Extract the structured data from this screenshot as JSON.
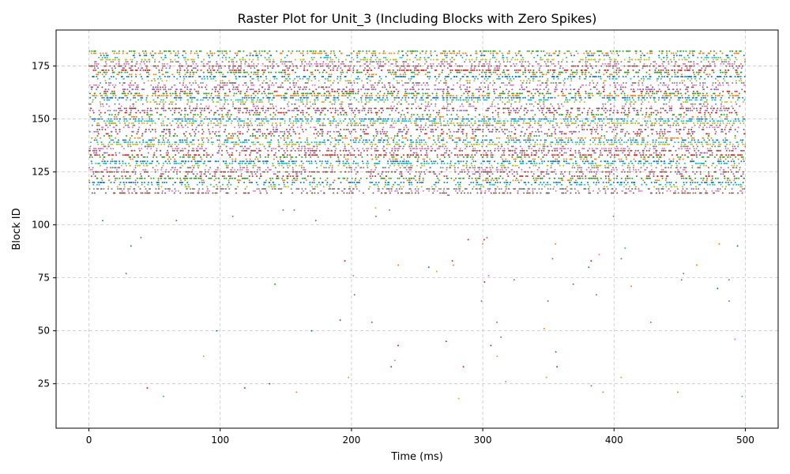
{
  "chart_data": {
    "type": "scatter",
    "title": "Raster Plot for Unit_3 (Including Blocks with Zero Spikes)",
    "xlabel": "Time (ms)",
    "ylabel": "Block ID",
    "xlim": [
      -25,
      525
    ],
    "ylim": [
      4,
      192
    ],
    "xticks": [
      0,
      100,
      200,
      300,
      400,
      500
    ],
    "yticks": [
      25,
      50,
      75,
      100,
      125,
      150,
      175
    ],
    "grid": true,
    "colors": [
      "#1f77b4",
      "#ff7f0e",
      "#2ca02c",
      "#d62728",
      "#9467bd",
      "#8c564b",
      "#e377c2",
      "#7f7f7f",
      "#bcbd22",
      "#17becf"
    ],
    "marker": "dot",
    "block_ids": [
      12,
      182
    ],
    "time_range": [
      0,
      500
    ],
    "dense_region_blocks": [
      115,
      182
    ],
    "sparse_region_blocks": [
      12,
      112
    ],
    "series_note": "Each block ID row is drawn in a repeating 10-color cycle"
  }
}
